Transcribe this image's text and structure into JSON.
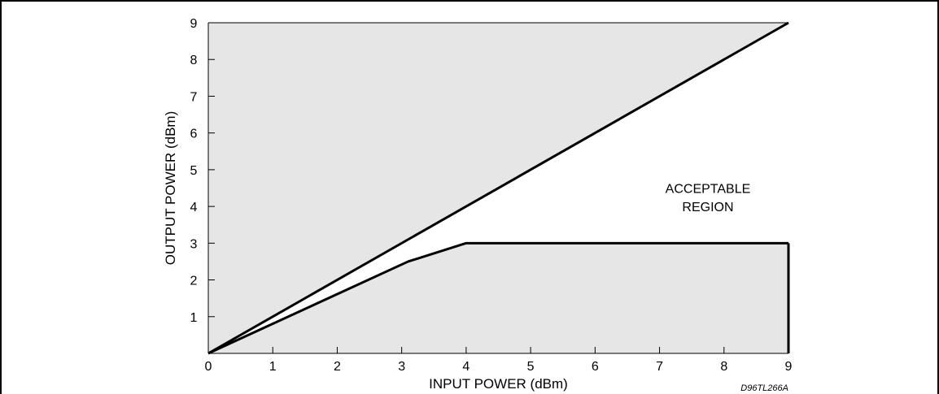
{
  "chart_data": {
    "type": "area",
    "xlabel": "INPUT POWER (dBm)",
    "ylabel": "OUTPUT POWER (dBm)",
    "xlim": [
      0,
      9
    ],
    "ylim": [
      0,
      9
    ],
    "xticks": [
      "0",
      "1",
      "2",
      "3",
      "4",
      "5",
      "6",
      "7",
      "8",
      "9"
    ],
    "yticks": [
      "1",
      "2",
      "3",
      "4",
      "5",
      "6",
      "7",
      "8",
      "9"
    ],
    "grid": false,
    "upper_boundary": {
      "x": [
        0,
        9
      ],
      "y": [
        0,
        9
      ]
    },
    "lower_boundary": {
      "x": [
        0,
        3.1,
        4,
        9
      ],
      "y": [
        0,
        2.5,
        3,
        3
      ]
    },
    "region_label_line1": "ACCEPTABLE",
    "region_label_line2": "REGION",
    "region_label_x": 7.75,
    "region_label_y_line1": 4.5,
    "region_label_y_line2": 4.0,
    "figure_code": "D96TL266A",
    "fill_color": "#e6e6e6",
    "line_color": "#000000"
  }
}
